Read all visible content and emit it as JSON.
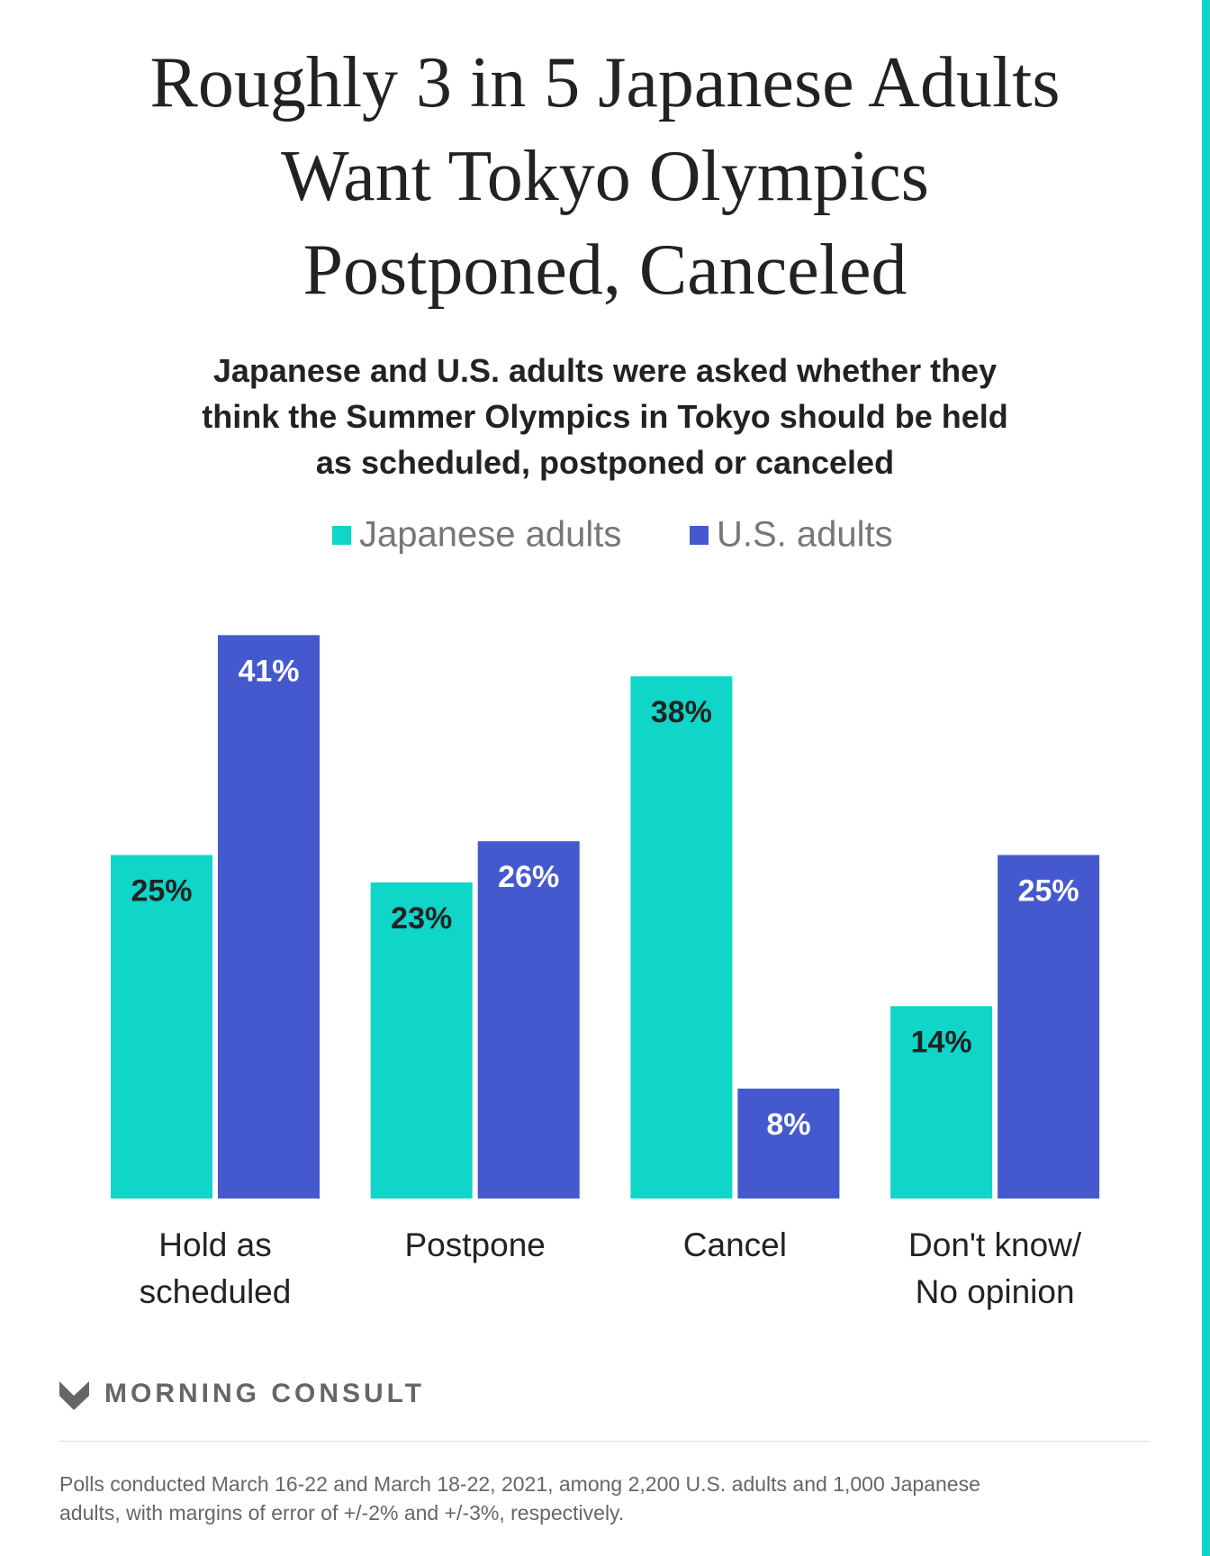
{
  "chart_data": {
    "type": "bar",
    "title": "Roughly 3 in 5 Japanese Adults\nWant Tokyo Olympics\nPostponed, Canceled",
    "subtitle": "Japanese and U.S. adults were asked whether they\nthink the Summer Olympics in Tokyo should be held\nas scheduled, postponed or canceled",
    "categories": [
      "Hold as\nscheduled",
      "Postpone",
      "Cancel",
      "Don't know/\nNo opinion"
    ],
    "series": [
      {
        "name": "Japanese adults",
        "color": "#10d5c9",
        "values": [
          25,
          23,
          38,
          14
        ],
        "value_labels": [
          "25%",
          "23%",
          "38%",
          "14%"
        ]
      },
      {
        "name": "U.S. adults",
        "color": "#4559ce",
        "values": [
          41,
          26,
          8,
          25
        ],
        "value_labels": [
          "41%",
          "26%",
          "8%",
          "25%"
        ]
      }
    ],
    "legend": "top"
  },
  "brand": "MORNING CONSULT",
  "footnote": "Polls conducted March 16-22 and March 18-22, 2021, among 2,200 U.S. adults and 1,000 Japanese\nadults, with margins of error of +/-2% and +/-3%, respectively."
}
